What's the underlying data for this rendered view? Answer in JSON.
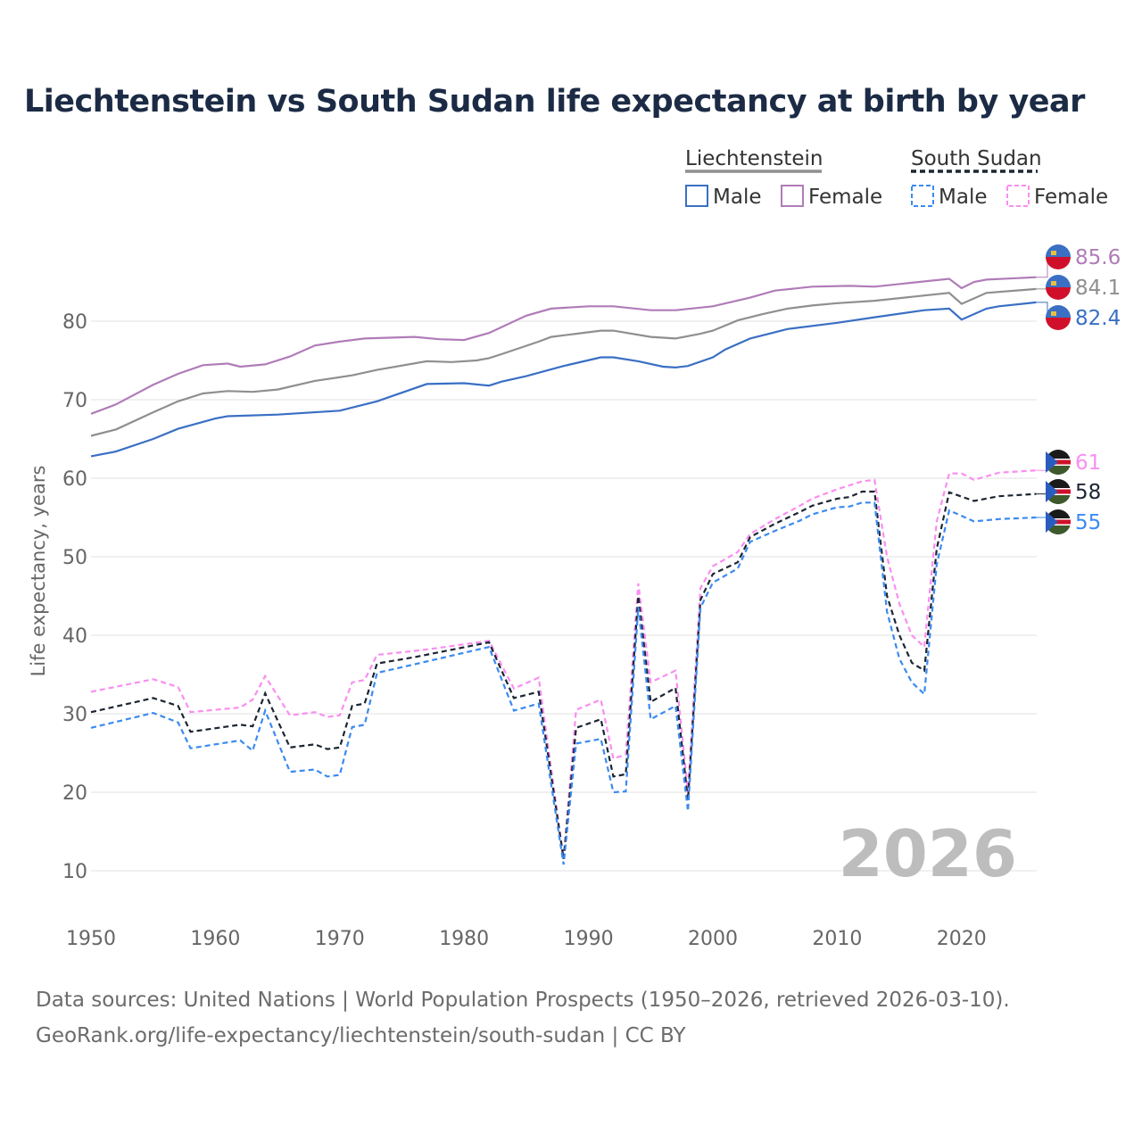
{
  "title": "Liechtenstein vs South Sudan life expectancy at birth by year",
  "legend": {
    "group1": "Liechtenstein",
    "group2": "South Sudan",
    "male": "Male",
    "female": "Female"
  },
  "watermark_year": "2026",
  "source_line1": "Data sources: United Nations | World Population Prospects (1950–2026, retrieved 2026-03-10).",
  "source_line2": "GeoRank.org/life-expectancy/liechtenstein/south-sudan | CC BY",
  "chart_data": {
    "type": "line",
    "title": "Liechtenstein vs South Sudan life expectancy at birth by year",
    "xlabel": "",
    "ylabel": "Life expectancy, years",
    "xlim": [
      1950,
      2026
    ],
    "ylim": [
      0,
      90
    ],
    "xticks": [
      1950,
      1960,
      1970,
      1980,
      1990,
      2000,
      2010,
      2020
    ],
    "yticks": [
      10,
      20,
      30,
      40,
      50,
      60,
      70,
      80
    ],
    "grid": true,
    "legend_position": "top-right",
    "series": [
      {
        "name": "Liechtenstein Female",
        "color": "#b07cb8",
        "dash": false,
        "end_label": "85.6",
        "points": [
          [
            1950,
            68.2
          ],
          [
            1952,
            69.4
          ],
          [
            1955,
            71.9
          ],
          [
            1957,
            73.3
          ],
          [
            1959,
            74.4
          ],
          [
            1961,
            74.6
          ],
          [
            1962,
            74.2
          ],
          [
            1964,
            74.5
          ],
          [
            1966,
            75.5
          ],
          [
            1968,
            76.9
          ],
          [
            1970,
            77.4
          ],
          [
            1972,
            77.8
          ],
          [
            1976,
            78
          ],
          [
            1978,
            77.7
          ],
          [
            1980,
            77.6
          ],
          [
            1982,
            78.5
          ],
          [
            1985,
            80.7
          ],
          [
            1987,
            81.6
          ],
          [
            1990,
            81.9
          ],
          [
            1992,
            81.9
          ],
          [
            1995,
            81.4
          ],
          [
            1997,
            81.4
          ],
          [
            2000,
            81.9
          ],
          [
            2003,
            83
          ],
          [
            2005,
            83.9
          ],
          [
            2008,
            84.4
          ],
          [
            2011,
            84.5
          ],
          [
            2013,
            84.4
          ],
          [
            2016,
            84.9
          ],
          [
            2019,
            85.4
          ],
          [
            2020,
            84.2
          ],
          [
            2021,
            85
          ],
          [
            2022,
            85.3
          ],
          [
            2026,
            85.6
          ]
        ]
      },
      {
        "name": "Liechtenstein Total",
        "color": "#8f8f8f",
        "dash": false,
        "end_label": "84.1",
        "points": [
          [
            1950,
            65.4
          ],
          [
            1952,
            66.2
          ],
          [
            1955,
            68.4
          ],
          [
            1957,
            69.8
          ],
          [
            1959,
            70.8
          ],
          [
            1961,
            71.1
          ],
          [
            1963,
            71
          ],
          [
            1965,
            71.3
          ],
          [
            1968,
            72.4
          ],
          [
            1971,
            73.1
          ],
          [
            1973,
            73.8
          ],
          [
            1977,
            74.9
          ],
          [
            1979,
            74.8
          ],
          [
            1981,
            75
          ],
          [
            1982,
            75.3
          ],
          [
            1983,
            75.8
          ],
          [
            1986,
            77.4
          ],
          [
            1987,
            78
          ],
          [
            1989,
            78.4
          ],
          [
            1991,
            78.8
          ],
          [
            1992,
            78.8
          ],
          [
            1995,
            78
          ],
          [
            1997,
            77.8
          ],
          [
            1999,
            78.4
          ],
          [
            2000,
            78.8
          ],
          [
            2002,
            80.1
          ],
          [
            2004,
            80.9
          ],
          [
            2006,
            81.6
          ],
          [
            2008,
            82
          ],
          [
            2010,
            82.3
          ],
          [
            2013,
            82.6
          ],
          [
            2016,
            83.1
          ],
          [
            2019,
            83.6
          ],
          [
            2020,
            82.2
          ],
          [
            2022,
            83.6
          ],
          [
            2026,
            84.1
          ]
        ]
      },
      {
        "name": "Liechtenstein Male",
        "color": "#3a6fc4",
        "dash": false,
        "end_label": "82.4",
        "points": [
          [
            1950,
            62.8
          ],
          [
            1952,
            63.4
          ],
          [
            1955,
            65
          ],
          [
            1957,
            66.3
          ],
          [
            1960,
            67.6
          ],
          [
            1961,
            67.9
          ],
          [
            1965,
            68.1
          ],
          [
            1970,
            68.6
          ],
          [
            1973,
            69.8
          ],
          [
            1977,
            72
          ],
          [
            1980,
            72.1
          ],
          [
            1982,
            71.8
          ],
          [
            1983,
            72.3
          ],
          [
            1985,
            73
          ],
          [
            1988,
            74.3
          ],
          [
            1991,
            75.4
          ],
          [
            1992,
            75.4
          ],
          [
            1994,
            74.9
          ],
          [
            1996,
            74.2
          ],
          [
            1997,
            74.1
          ],
          [
            1998,
            74.3
          ],
          [
            2000,
            75.4
          ],
          [
            2001,
            76.4
          ],
          [
            2003,
            77.8
          ],
          [
            2006,
            79
          ],
          [
            2010,
            79.8
          ],
          [
            2013,
            80.5
          ],
          [
            2017,
            81.4
          ],
          [
            2019,
            81.6
          ],
          [
            2020,
            80.2
          ],
          [
            2022,
            81.6
          ],
          [
            2023,
            81.9
          ],
          [
            2026,
            82.4
          ]
        ]
      },
      {
        "name": "South Sudan Female",
        "color": "#f98ef0",
        "dash": true,
        "end_label": "61",
        "points": [
          [
            1950,
            32.8
          ],
          [
            1955,
            34.4
          ],
          [
            1957,
            33.4
          ],
          [
            1958,
            30.2
          ],
          [
            1962,
            30.8
          ],
          [
            1963,
            31.8
          ],
          [
            1964,
            34.8
          ],
          [
            1966,
            29.8
          ],
          [
            1968,
            30.2
          ],
          [
            1969,
            29.6
          ],
          [
            1970,
            29.8
          ],
          [
            1971,
            34
          ],
          [
            1972,
            34.3
          ],
          [
            1973,
            37.5
          ],
          [
            1976,
            38
          ],
          [
            1978,
            38.4
          ],
          [
            1982,
            39.3
          ],
          [
            1984,
            33.2
          ],
          [
            1986,
            34.6
          ],
          [
            1988,
            11.5
          ],
          [
            1989,
            30.5
          ],
          [
            1991,
            31.8
          ],
          [
            1992,
            24.3
          ],
          [
            1993,
            24.8
          ],
          [
            1994,
            46.6
          ],
          [
            1995,
            34
          ],
          [
            1997,
            35.5
          ],
          [
            1998,
            20
          ],
          [
            1999,
            46
          ],
          [
            2000,
            48.8
          ],
          [
            2002,
            50.6
          ],
          [
            2003,
            52.9
          ],
          [
            2005,
            54.8
          ],
          [
            2007,
            56.5
          ],
          [
            2008,
            57.4
          ],
          [
            2010,
            58.6
          ],
          [
            2012,
            59.6
          ],
          [
            2013,
            59.8
          ],
          [
            2014,
            50
          ],
          [
            2015,
            44
          ],
          [
            2016,
            40
          ],
          [
            2017,
            38.5
          ],
          [
            2018,
            54.5
          ],
          [
            2019,
            60.6
          ],
          [
            2020,
            60.6
          ],
          [
            2021,
            59.8
          ],
          [
            2023,
            60.7
          ],
          [
            2026,
            61
          ]
        ]
      },
      {
        "name": "South Sudan Total",
        "color": "#1c2533",
        "dash": true,
        "end_label": "58",
        "points": [
          [
            1950,
            30.2
          ],
          [
            1955,
            32
          ],
          [
            1957,
            31
          ],
          [
            1958,
            27.7
          ],
          [
            1962,
            28.6
          ],
          [
            1963,
            28.4
          ],
          [
            1964,
            32.6
          ],
          [
            1966,
            25.7
          ],
          [
            1968,
            26.1
          ],
          [
            1969,
            25.5
          ],
          [
            1970,
            25.7
          ],
          [
            1971,
            31
          ],
          [
            1972,
            31.3
          ],
          [
            1973,
            36.4
          ],
          [
            1976,
            37.2
          ],
          [
            1982,
            39.1
          ],
          [
            1984,
            32
          ],
          [
            1986,
            32.8
          ],
          [
            1988,
            11.5
          ],
          [
            1989,
            28.2
          ],
          [
            1991,
            29.3
          ],
          [
            1992,
            22
          ],
          [
            1993,
            22.3
          ],
          [
            1994,
            45
          ],
          [
            1995,
            31.5
          ],
          [
            1997,
            33.3
          ],
          [
            1998,
            19
          ],
          [
            1999,
            44.5
          ],
          [
            2000,
            47.8
          ],
          [
            2002,
            49.3
          ],
          [
            2003,
            52.5
          ],
          [
            2005,
            54.2
          ],
          [
            2007,
            55.7
          ],
          [
            2008,
            56.5
          ],
          [
            2010,
            57.4
          ],
          [
            2011,
            57.6
          ],
          [
            2012,
            58.3
          ],
          [
            2013,
            58.3
          ],
          [
            2014,
            45
          ],
          [
            2015,
            40
          ],
          [
            2016,
            36.5
          ],
          [
            2017,
            35.5
          ],
          [
            2018,
            51
          ],
          [
            2019,
            58.2
          ],
          [
            2021,
            57.1
          ],
          [
            2023,
            57.7
          ],
          [
            2026,
            58
          ]
        ]
      },
      {
        "name": "South Sudan Male",
        "color": "#3b8af0",
        "dash": true,
        "end_label": "55",
        "points": [
          [
            1950,
            28.2
          ],
          [
            1955,
            30.1
          ],
          [
            1957,
            28.9
          ],
          [
            1958,
            25.6
          ],
          [
            1962,
            26.6
          ],
          [
            1963,
            25.3
          ],
          [
            1964,
            30.4
          ],
          [
            1966,
            22.6
          ],
          [
            1968,
            22.9
          ],
          [
            1969,
            22
          ],
          [
            1970,
            22.2
          ],
          [
            1971,
            28.3
          ],
          [
            1972,
            28.6
          ],
          [
            1973,
            35.2
          ],
          [
            1976,
            36.3
          ],
          [
            1982,
            38.5
          ],
          [
            1984,
            30.4
          ],
          [
            1986,
            31.3
          ],
          [
            1988,
            10.8
          ],
          [
            1989,
            26.2
          ],
          [
            1991,
            26.8
          ],
          [
            1992,
            20
          ],
          [
            1993,
            20.1
          ],
          [
            1994,
            43.6
          ],
          [
            1995,
            29.3
          ],
          [
            1997,
            31
          ],
          [
            1998,
            17.6
          ],
          [
            1999,
            43.5
          ],
          [
            2000,
            46.7
          ],
          [
            2002,
            48.5
          ],
          [
            2003,
            51.9
          ],
          [
            2005,
            53.3
          ],
          [
            2007,
            54.6
          ],
          [
            2008,
            55.4
          ],
          [
            2010,
            56.3
          ],
          [
            2011,
            56.4
          ],
          [
            2012,
            56.9
          ],
          [
            2013,
            56.9
          ],
          [
            2014,
            43
          ],
          [
            2015,
            37
          ],
          [
            2016,
            34
          ],
          [
            2017,
            32.5
          ],
          [
            2018,
            49
          ],
          [
            2019,
            55.9
          ],
          [
            2021,
            54.5
          ],
          [
            2023,
            54.8
          ],
          [
            2026,
            55
          ]
        ]
      }
    ]
  }
}
